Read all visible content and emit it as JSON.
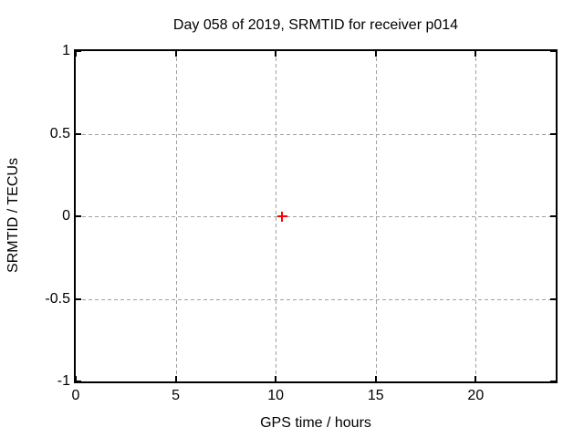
{
  "chart_data": {
    "type": "scatter",
    "title": "Day 058 of 2019, SRMTID for receiver p014",
    "xlabel": "GPS time / hours",
    "ylabel": "SRMTID / TECUs",
    "xlim": [
      0,
      24
    ],
    "ylim": [
      -1,
      1
    ],
    "xticks": [
      0,
      5,
      10,
      15,
      20
    ],
    "yticks": [
      -1,
      -0.5,
      0,
      0.5,
      1
    ],
    "grid": true,
    "grid_style": "dashed",
    "legend_position": "none",
    "background_color": "#ffffff",
    "border_color": "#000000",
    "grid_color": "#a0a0a0",
    "series": [
      {
        "name": "SRMTID",
        "marker": "plus",
        "color": "#ff0000",
        "points": [
          {
            "x": 10.3,
            "y": 0.0
          }
        ]
      }
    ]
  }
}
